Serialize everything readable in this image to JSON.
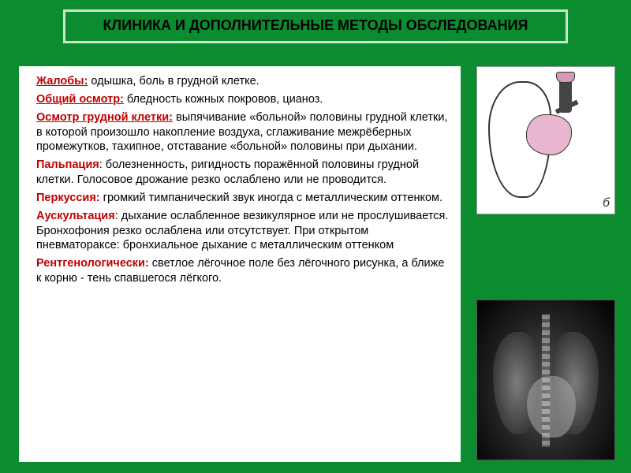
{
  "colors": {
    "background": "#0a8c2f",
    "title_border": "#c8e6c8",
    "title_text": "#000000",
    "heading": "#c00000",
    "body_text": "#000000",
    "content_bg": "#ffffff"
  },
  "title": "КЛИНИКА И ДОПОЛНИТЕЛЬНЫЕ МЕТОДЫ ОБСЛЕДОВАНИЯ",
  "sections": [
    {
      "heading": "Жалобы:",
      "underline": true,
      "text": " одышка, боль в грудной клетке."
    },
    {
      "heading": "Общий осмотр:",
      "underline": true,
      "text": " бледность кожных покровов, цианоз."
    },
    {
      "heading": "Осмотр грудной клетки:",
      "underline": true,
      "text": " выпячивание «больной» половины грудной клетки, в которой произошло накопление воздуха, сглаживание межрёберных промежутков, тахипное, отставание «больной» половины при дыхании."
    },
    {
      "heading": "Пальпация",
      "underline": false,
      "text": ": болезненность, ригидность поражённой половины грудной клетки. Голосовое дрожание резко ослаблено или не проводится."
    },
    {
      "heading": "Перкуссия:",
      "underline": false,
      "text": " громкий тимпанический звук иногда с металлическим оттенком."
    },
    {
      "heading": "Аускультация",
      "underline": false,
      "text": ": дыхание ослабленное везикулярное или не прослушивается. Бронхофония резко ослаблена или отсутствует. При открытом пневматораксе: бронхиальное дыхание с металлическим оттенком"
    },
    {
      "heading": "Рентгенологически:",
      "underline": false,
      "text": " светлое лёгочное поле без лёгочного рисунка, а ближе к корню - тень спавшегося лёгкого."
    }
  ],
  "diagram": {
    "label": "б",
    "outline_color": "#333333",
    "mass_color": "#e8b6cf",
    "trachea_color": "#444444",
    "larynx_color": "#d59ab5",
    "background": "#ffffff"
  },
  "xray": {
    "background": "#000000",
    "lung_color": "#888888",
    "spine_color": "#bbbbbb",
    "heart_color": "#aaaaaa"
  }
}
